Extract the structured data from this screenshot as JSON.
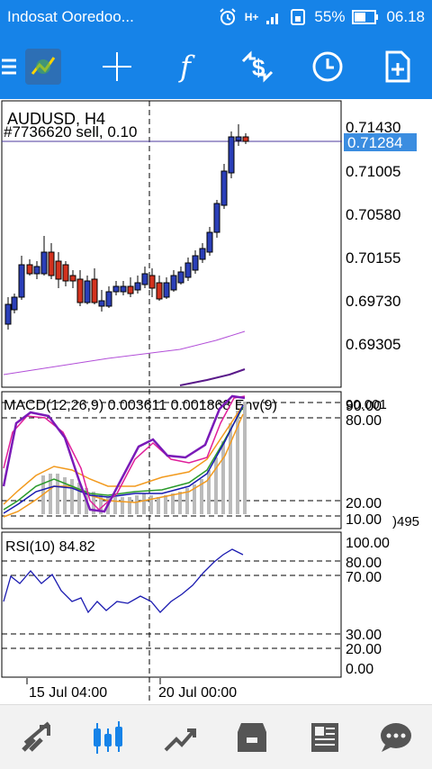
{
  "status_bar": {
    "carrier": "Indosat Ooredoo...",
    "network": "H+",
    "battery": "55%",
    "time": "06.18"
  },
  "toolbar": {
    "icons": [
      "menu-icon",
      "app-logo-icon",
      "crosshair-icon",
      "function-icon",
      "trade-icon",
      "clock-icon",
      "add-document-icon"
    ],
    "function_glyph": "f"
  },
  "chart": {
    "symbol_label": "AUDUSD, H4",
    "order_label": "#7736620 sell, 0.10",
    "current_price": "0.71284",
    "price_ticks": [
      "0.71430",
      "0.71005",
      "0.70580",
      "0.70155",
      "0.69730",
      "0.69305"
    ],
    "macd_label": "MACD(12,26,9) 0.003611 0.001868 Env(9)",
    "macd_top_value": "90.001",
    "macd_ticks": [
      "90.00",
      "80.00",
      "20.00",
      "10.00"
    ],
    "macd_side_value": ")495",
    "rsi_label": "RSI(10) 84.82",
    "rsi_ticks": [
      "100.00",
      "80.00",
      "70.00",
      "30.00",
      "20.00",
      "0.00"
    ],
    "time_labels": [
      "15 Jul 04:00",
      "20 Jul 00:00"
    ],
    "accent_color": "#1683e8"
  },
  "bottom_nav": {
    "items": [
      "quotes-icon",
      "chart-icon",
      "trade-icon",
      "history-icon",
      "news-icon",
      "messages-icon"
    ],
    "active": "chart-icon"
  }
}
